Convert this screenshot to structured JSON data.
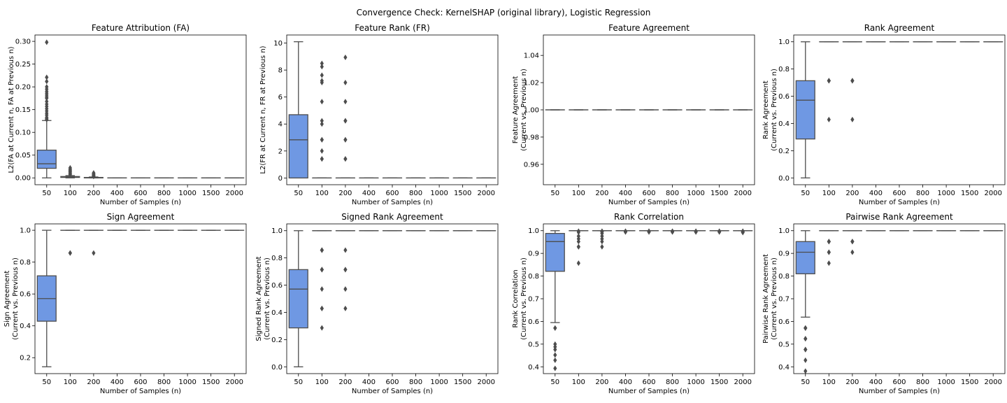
{
  "suptitle": "Convergence Check: KernelSHAP (original library), Logistic Regression",
  "colors": {
    "box_fill": "#6f98e3",
    "line": "#4d4d4d",
    "frame": "#000000"
  },
  "chart_data": [
    {
      "type": "box",
      "title": "Feature Attribution (FA)",
      "xlabel": "Number of Samples (n)",
      "ylabel": [
        "L2(FA at Current n, FA at Previous n)"
      ],
      "categories": [
        "50",
        "100",
        "200",
        "400",
        "600",
        "800",
        "1000",
        "1500",
        "2000"
      ],
      "ylim": [
        -0.015,
        0.314
      ],
      "yticks": [
        0,
        0.05,
        0.1,
        0.15,
        0.2,
        0.25,
        0.3
      ],
      "ytick_labels": [
        "0.00",
        "0.05",
        "0.10",
        "0.15",
        "0.20",
        "0.25",
        "0.30"
      ],
      "boxes": [
        {
          "q1": 0.021,
          "med": 0.031,
          "q3": 0.061,
          "wlo": 0.0,
          "whi": 0.126,
          "outliers": [
            0.128,
            0.13,
            0.133,
            0.138,
            0.142,
            0.147,
            0.152,
            0.157,
            0.162,
            0.168,
            0.175,
            0.178,
            0.182,
            0.186,
            0.19,
            0.195,
            0.2,
            0.212,
            0.221,
            0.298
          ]
        },
        {
          "q1": 0.001,
          "med": 0.002,
          "q3": 0.003,
          "wlo": 0.0,
          "whi": 0.005,
          "outliers": [
            0.007,
            0.009,
            0.011,
            0.013,
            0.015,
            0.017,
            0.019,
            0.022
          ]
        },
        {
          "q1": 0.0,
          "med": 0.0005,
          "q3": 0.001,
          "wlo": 0.0,
          "whi": 0.002,
          "outliers": [
            0.003,
            0.004,
            0.005,
            0.006,
            0.007,
            0.009,
            0.011
          ]
        },
        {
          "q1": 0,
          "med": 0,
          "q3": 0,
          "wlo": 0,
          "whi": 0,
          "outliers": []
        },
        {
          "q1": 0,
          "med": 0,
          "q3": 0,
          "wlo": 0,
          "whi": 0,
          "outliers": []
        },
        {
          "q1": 0,
          "med": 0,
          "q3": 0,
          "wlo": 0,
          "whi": 0,
          "outliers": []
        },
        {
          "q1": 0,
          "med": 0,
          "q3": 0,
          "wlo": 0,
          "whi": 0,
          "outliers": []
        },
        {
          "q1": 0,
          "med": 0,
          "q3": 0,
          "wlo": 0,
          "whi": 0,
          "outliers": []
        },
        {
          "q1": 0,
          "med": 0,
          "q3": 0,
          "wlo": 0,
          "whi": 0,
          "outliers": []
        }
      ]
    },
    {
      "type": "box",
      "title": "Feature Rank (FR)",
      "xlabel": "Number of Samples (n)",
      "ylabel": [
        "L2(FR at Current n, FR at Previous n)"
      ],
      "categories": [
        "50",
        "100",
        "200",
        "400",
        "600",
        "800",
        "1000",
        "1500",
        "2000"
      ],
      "ylim": [
        -0.5,
        10.6
      ],
      "yticks": [
        0,
        2,
        4,
        6,
        8,
        10
      ],
      "ytick_labels": [
        "0",
        "2",
        "4",
        "6",
        "8",
        "10"
      ],
      "boxes": [
        {
          "q1": 0.0,
          "med": 2.83,
          "q3": 4.69,
          "wlo": 0.0,
          "whi": 10.1,
          "outliers": []
        },
        {
          "q1": 0,
          "med": 0,
          "q3": 0,
          "wlo": 0,
          "whi": 0,
          "outliers": [
            1.41,
            1.41,
            2.0,
            2.83,
            2.83,
            4.0,
            4.24,
            5.66,
            7.07,
            7.21,
            7.62,
            8.25,
            8.49
          ]
        },
        {
          "q1": 0,
          "med": 0,
          "q3": 0,
          "wlo": 0,
          "whi": 0,
          "outliers": [
            1.41,
            1.41,
            2.83,
            2.83,
            4.24,
            4.24,
            5.66,
            7.07,
            8.94
          ]
        },
        {
          "q1": 0,
          "med": 0,
          "q3": 0,
          "wlo": 0,
          "whi": 0,
          "outliers": []
        },
        {
          "q1": 0,
          "med": 0,
          "q3": 0,
          "wlo": 0,
          "whi": 0,
          "outliers": []
        },
        {
          "q1": 0,
          "med": 0,
          "q3": 0,
          "wlo": 0,
          "whi": 0,
          "outliers": []
        },
        {
          "q1": 0,
          "med": 0,
          "q3": 0,
          "wlo": 0,
          "whi": 0,
          "outliers": []
        },
        {
          "q1": 0,
          "med": 0,
          "q3": 0,
          "wlo": 0,
          "whi": 0,
          "outliers": []
        },
        {
          "q1": 0,
          "med": 0,
          "q3": 0,
          "wlo": 0,
          "whi": 0,
          "outliers": []
        }
      ]
    },
    {
      "type": "box",
      "title": "Feature Agreement",
      "xlabel": "Number of Samples (n)",
      "ylabel": [
        "Feature Agreement",
        "(Current vs. Previous n)"
      ],
      "categories": [
        "50",
        "100",
        "200",
        "400",
        "600",
        "800",
        "1000",
        "1500",
        "2000"
      ],
      "ylim": [
        0.945,
        1.055
      ],
      "yticks": [
        0.96,
        0.98,
        1.0,
        1.02,
        1.04
      ],
      "ytick_labels": [
        "0.96",
        "0.98",
        "1.00",
        "1.02",
        "1.04"
      ],
      "boxes": [
        {
          "q1": 1,
          "med": 1,
          "q3": 1,
          "wlo": 1,
          "whi": 1,
          "outliers": []
        },
        {
          "q1": 1,
          "med": 1,
          "q3": 1,
          "wlo": 1,
          "whi": 1,
          "outliers": []
        },
        {
          "q1": 1,
          "med": 1,
          "q3": 1,
          "wlo": 1,
          "whi": 1,
          "outliers": []
        },
        {
          "q1": 1,
          "med": 1,
          "q3": 1,
          "wlo": 1,
          "whi": 1,
          "outliers": []
        },
        {
          "q1": 1,
          "med": 1,
          "q3": 1,
          "wlo": 1,
          "whi": 1,
          "outliers": []
        },
        {
          "q1": 1,
          "med": 1,
          "q3": 1,
          "wlo": 1,
          "whi": 1,
          "outliers": []
        },
        {
          "q1": 1,
          "med": 1,
          "q3": 1,
          "wlo": 1,
          "whi": 1,
          "outliers": []
        },
        {
          "q1": 1,
          "med": 1,
          "q3": 1,
          "wlo": 1,
          "whi": 1,
          "outliers": []
        },
        {
          "q1": 1,
          "med": 1,
          "q3": 1,
          "wlo": 1,
          "whi": 1,
          "outliers": []
        }
      ]
    },
    {
      "type": "box",
      "title": "Rank Agreement",
      "xlabel": "Number of Samples (n)",
      "ylabel": [
        "Rank Agreement",
        "(Current vs. Previous n)"
      ],
      "categories": [
        "50",
        "100",
        "200",
        "400",
        "600",
        "800",
        "1000",
        "1500",
        "2000"
      ],
      "ylim": [
        -0.05,
        1.05
      ],
      "yticks": [
        0,
        0.2,
        0.4,
        0.6,
        0.8,
        1.0
      ],
      "ytick_labels": [
        "0.0",
        "0.2",
        "0.4",
        "0.6",
        "0.8",
        "1.0"
      ],
      "boxes": [
        {
          "q1": 0.286,
          "med": 0.571,
          "q3": 0.714,
          "wlo": 0.0,
          "whi": 1.0,
          "outliers": []
        },
        {
          "q1": 1,
          "med": 1,
          "q3": 1,
          "wlo": 1,
          "whi": 1,
          "outliers": [
            0.714,
            0.714,
            0.714,
            0.429
          ]
        },
        {
          "q1": 1,
          "med": 1,
          "q3": 1,
          "wlo": 1,
          "whi": 1,
          "outliers": [
            0.714,
            0.714,
            0.714,
            0.429
          ]
        },
        {
          "q1": 1,
          "med": 1,
          "q3": 1,
          "wlo": 1,
          "whi": 1,
          "outliers": []
        },
        {
          "q1": 1,
          "med": 1,
          "q3": 1,
          "wlo": 1,
          "whi": 1,
          "outliers": []
        },
        {
          "q1": 1,
          "med": 1,
          "q3": 1,
          "wlo": 1,
          "whi": 1,
          "outliers": []
        },
        {
          "q1": 1,
          "med": 1,
          "q3": 1,
          "wlo": 1,
          "whi": 1,
          "outliers": []
        },
        {
          "q1": 1,
          "med": 1,
          "q3": 1,
          "wlo": 1,
          "whi": 1,
          "outliers": []
        },
        {
          "q1": 1,
          "med": 1,
          "q3": 1,
          "wlo": 1,
          "whi": 1,
          "outliers": []
        }
      ]
    },
    {
      "type": "box",
      "title": "Sign Agreement",
      "xlabel": "Number of Samples (n)",
      "ylabel": [
        "Sign Agreement",
        "(Current vs. Previous n)"
      ],
      "categories": [
        "50",
        "100",
        "200",
        "400",
        "600",
        "800",
        "1000",
        "1500",
        "2000"
      ],
      "ylim": [
        0.1,
        1.04
      ],
      "yticks": [
        0.2,
        0.4,
        0.6,
        0.8,
        1.0
      ],
      "ytick_labels": [
        "0.2",
        "0.4",
        "0.6",
        "0.8",
        "1.0"
      ],
      "boxes": [
        {
          "q1": 0.429,
          "med": 0.571,
          "q3": 0.714,
          "wlo": 0.143,
          "whi": 1.0,
          "outliers": []
        },
        {
          "q1": 1,
          "med": 1,
          "q3": 1,
          "wlo": 1,
          "whi": 1,
          "outliers": [
            0.857,
            0.857
          ]
        },
        {
          "q1": 1,
          "med": 1,
          "q3": 1,
          "wlo": 1,
          "whi": 1,
          "outliers": [
            0.857
          ]
        },
        {
          "q1": 1,
          "med": 1,
          "q3": 1,
          "wlo": 1,
          "whi": 1,
          "outliers": []
        },
        {
          "q1": 1,
          "med": 1,
          "q3": 1,
          "wlo": 1,
          "whi": 1,
          "outliers": []
        },
        {
          "q1": 1,
          "med": 1,
          "q3": 1,
          "wlo": 1,
          "whi": 1,
          "outliers": []
        },
        {
          "q1": 1,
          "med": 1,
          "q3": 1,
          "wlo": 1,
          "whi": 1,
          "outliers": []
        },
        {
          "q1": 1,
          "med": 1,
          "q3": 1,
          "wlo": 1,
          "whi": 1,
          "outliers": []
        },
        {
          "q1": 1,
          "med": 1,
          "q3": 1,
          "wlo": 1,
          "whi": 1,
          "outliers": []
        }
      ]
    },
    {
      "type": "box",
      "title": "Signed Rank Agreement",
      "xlabel": "Number of Samples (n)",
      "ylabel": [
        "Signed Rank Agreement",
        "(Current vs. Previous n)"
      ],
      "categories": [
        "50",
        "100",
        "200",
        "400",
        "600",
        "800",
        "1000",
        "1500",
        "2000"
      ],
      "ylim": [
        -0.05,
        1.05
      ],
      "yticks": [
        0,
        0.2,
        0.4,
        0.6,
        0.8,
        1.0
      ],
      "ytick_labels": [
        "0.0",
        "0.2",
        "0.4",
        "0.6",
        "0.8",
        "1.0"
      ],
      "boxes": [
        {
          "q1": 0.286,
          "med": 0.571,
          "q3": 0.714,
          "wlo": 0.0,
          "whi": 1.0,
          "outliers": []
        },
        {
          "q1": 1,
          "med": 1,
          "q3": 1,
          "wlo": 1,
          "whi": 1,
          "outliers": [
            0.857,
            0.857,
            0.857,
            0.714,
            0.714,
            0.714,
            0.571,
            0.429,
            0.429,
            0.286
          ]
        },
        {
          "q1": 1,
          "med": 1,
          "q3": 1,
          "wlo": 1,
          "whi": 1,
          "outliers": [
            0.857,
            0.714,
            0.714,
            0.571,
            0.429
          ]
        },
        {
          "q1": 1,
          "med": 1,
          "q3": 1,
          "wlo": 1,
          "whi": 1,
          "outliers": []
        },
        {
          "q1": 1,
          "med": 1,
          "q3": 1,
          "wlo": 1,
          "whi": 1,
          "outliers": []
        },
        {
          "q1": 1,
          "med": 1,
          "q3": 1,
          "wlo": 1,
          "whi": 1,
          "outliers": []
        },
        {
          "q1": 1,
          "med": 1,
          "q3": 1,
          "wlo": 1,
          "whi": 1,
          "outliers": []
        },
        {
          "q1": 1,
          "med": 1,
          "q3": 1,
          "wlo": 1,
          "whi": 1,
          "outliers": []
        },
        {
          "q1": 1,
          "med": 1,
          "q3": 1,
          "wlo": 1,
          "whi": 1,
          "outliers": []
        }
      ]
    },
    {
      "type": "box",
      "title": "Rank Correlation",
      "xlabel": "Number of Samples (n)",
      "ylabel": [
        "Rank Correlation",
        "(Current vs. Previous n)"
      ],
      "categories": [
        "50",
        "100",
        "200",
        "400",
        "600",
        "800",
        "1000",
        "1500",
        "2000"
      ],
      "ylim": [
        0.37,
        1.03
      ],
      "yticks": [
        0.4,
        0.5,
        0.6,
        0.7,
        0.8,
        0.9,
        1.0
      ],
      "ytick_labels": [
        "0.4",
        "0.5",
        "0.6",
        "0.7",
        "0.8",
        "0.9",
        "1.0"
      ],
      "boxes": [
        {
          "q1": 0.821,
          "med": 0.952,
          "q3": 0.988,
          "wlo": 0.595,
          "whi": 1.0,
          "outliers": [
            0.571,
            0.571,
            0.5,
            0.488,
            0.476,
            0.452,
            0.429,
            0.393
          ]
        },
        {
          "q1": 1,
          "med": 1,
          "q3": 1,
          "wlo": 1,
          "whi": 1,
          "outliers": [
            0.998,
            0.993,
            0.976,
            0.964,
            0.952,
            0.929,
            0.929,
            0.857
          ]
        },
        {
          "q1": 1,
          "med": 1,
          "q3": 1,
          "wlo": 1,
          "whi": 1,
          "outliers": [
            0.998,
            0.995,
            0.988,
            0.976,
            0.964,
            0.952,
            0.929
          ]
        },
        {
          "q1": 1,
          "med": 1,
          "q3": 1,
          "wlo": 1,
          "whi": 1,
          "outliers": [
            0.998,
            0.996,
            0.994
          ]
        },
        {
          "q1": 1,
          "med": 1,
          "q3": 1,
          "wlo": 1,
          "whi": 1,
          "outliers": [
            0.998,
            0.996,
            0.994
          ]
        },
        {
          "q1": 1,
          "med": 1,
          "q3": 1,
          "wlo": 1,
          "whi": 1,
          "outliers": [
            0.998,
            0.996,
            0.994
          ]
        },
        {
          "q1": 1,
          "med": 1,
          "q3": 1,
          "wlo": 1,
          "whi": 1,
          "outliers": [
            0.998,
            0.996,
            0.994
          ]
        },
        {
          "q1": 1,
          "med": 1,
          "q3": 1,
          "wlo": 1,
          "whi": 1,
          "outliers": [
            0.998,
            0.996,
            0.994
          ]
        },
        {
          "q1": 1,
          "med": 1,
          "q3": 1,
          "wlo": 1,
          "whi": 1,
          "outliers": [
            0.998,
            0.996,
            0.994,
            0.992
          ]
        }
      ]
    },
    {
      "type": "box",
      "title": "Pairwise Rank Agreement",
      "xlabel": "Number of Samples (n)",
      "ylabel": [
        "Pairwise Rank Agreement",
        "(Current vs. Previous n)"
      ],
      "categories": [
        "50",
        "100",
        "200",
        "400",
        "600",
        "800",
        "1000",
        "1500",
        "2000"
      ],
      "ylim": [
        0.37,
        1.03
      ],
      "yticks": [
        0.4,
        0.5,
        0.6,
        0.7,
        0.8,
        0.9,
        1.0
      ],
      "ytick_labels": [
        "0.4",
        "0.5",
        "0.6",
        "0.7",
        "0.8",
        "0.9",
        "1.0"
      ],
      "boxes": [
        {
          "q1": 0.81,
          "med": 0.905,
          "q3": 0.952,
          "wlo": 0.619,
          "whi": 1.0,
          "outliers": [
            0.571,
            0.571,
            0.571,
            0.524,
            0.524,
            0.476,
            0.476,
            0.476,
            0.429,
            0.381
          ]
        },
        {
          "q1": 1,
          "med": 1,
          "q3": 1,
          "wlo": 1,
          "whi": 1,
          "outliers": [
            0.952,
            0.952,
            0.952,
            0.905,
            0.905,
            0.857
          ]
        },
        {
          "q1": 1,
          "med": 1,
          "q3": 1,
          "wlo": 1,
          "whi": 1,
          "outliers": [
            0.952,
            0.952,
            0.952,
            0.905
          ]
        },
        {
          "q1": 1,
          "med": 1,
          "q3": 1,
          "wlo": 1,
          "whi": 1,
          "outliers": []
        },
        {
          "q1": 1,
          "med": 1,
          "q3": 1,
          "wlo": 1,
          "whi": 1,
          "outliers": []
        },
        {
          "q1": 1,
          "med": 1,
          "q3": 1,
          "wlo": 1,
          "whi": 1,
          "outliers": []
        },
        {
          "q1": 1,
          "med": 1,
          "q3": 1,
          "wlo": 1,
          "whi": 1,
          "outliers": []
        },
        {
          "q1": 1,
          "med": 1,
          "q3": 1,
          "wlo": 1,
          "whi": 1,
          "outliers": []
        },
        {
          "q1": 1,
          "med": 1,
          "q3": 1,
          "wlo": 1,
          "whi": 1,
          "outliers": []
        }
      ]
    }
  ]
}
